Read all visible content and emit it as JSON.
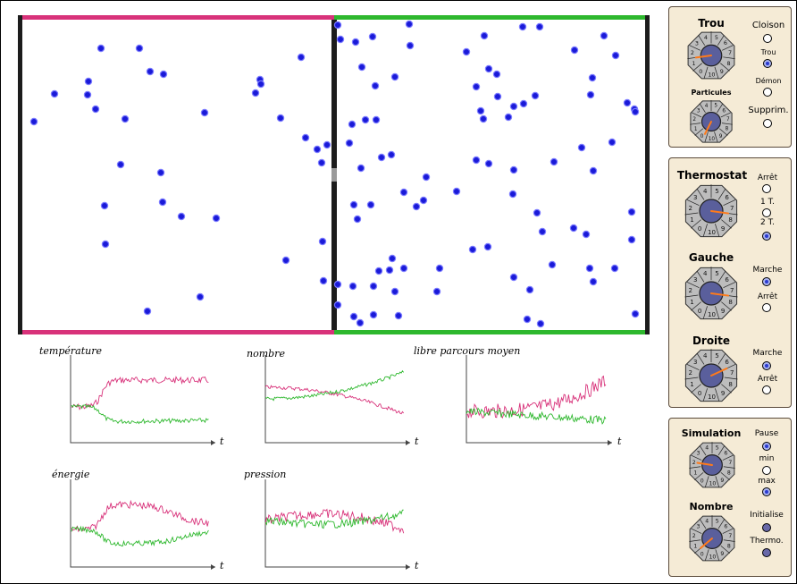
{
  "colors": {
    "left": "#d8327a",
    "right": "#2eb82e",
    "particle": "#1a1ad8",
    "wall": "#1c1c1c",
    "knob_face": "#5a5f9c",
    "knob_needle": "#ff7a1a",
    "panel_bg": "#f5ebd6"
  },
  "panel1": {
    "trou_title": "Trou",
    "particules_title": "Particules",
    "options": [
      "Cloison",
      "Trou",
      "Démon",
      "Supprim."
    ],
    "selected": "Trou"
  },
  "panel2": {
    "thermostat_title": "Thermostat",
    "thermostat_options": [
      "Arrêt",
      "1 T.",
      "2 T."
    ],
    "thermostat_selected": "2 T.",
    "gauche_title": "Gauche",
    "gauche_options": [
      "Marche",
      "Arrêt"
    ],
    "gauche_selected": "Marche",
    "droite_title": "Droite",
    "droite_options": [
      "Marche",
      "Arrêt"
    ],
    "droite_selected": "Marche"
  },
  "panel3": {
    "simulation_title": "Simulation",
    "simulation_options": [
      "Pause",
      "min",
      "max"
    ],
    "simulation_selected": [
      "Pause",
      "max"
    ],
    "nombre_title": "Nombre",
    "nombre_buttons": [
      "Initialise",
      "Thermo."
    ]
  },
  "dial_digits": [
    "0",
    "1",
    "2",
    "3",
    "4",
    "5",
    "6",
    "7",
    "8",
    "9",
    "10"
  ],
  "graphs": {
    "temperature": "température",
    "nombre": "nombre",
    "libre": "libre parcours moyen",
    "energie": "énergie",
    "pression": "pression",
    "axis": "t"
  },
  "knob_values": {
    "trou": 2,
    "particules": 0.3,
    "thermostat": 8,
    "gauche": 8,
    "droite": 7,
    "simulation": 2.5,
    "nombre": 1
  }
}
